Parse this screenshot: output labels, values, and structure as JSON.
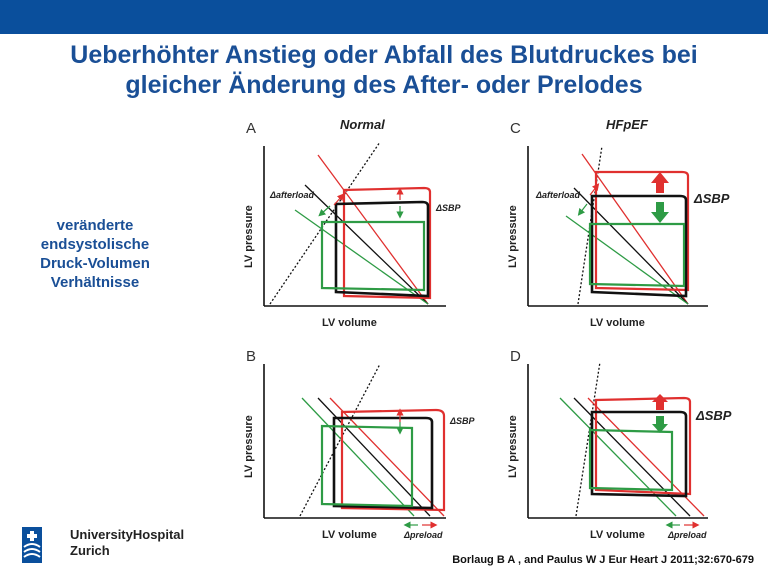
{
  "header": {
    "title_line1": "Ueberhöhter Anstieg oder Abfall des Blutdruckes bei",
    "title_line2": "gleicher Änderung des After- oder Prelodes"
  },
  "sidenote": {
    "lines": [
      "veränderte",
      "endsystolische",
      "Druck-Volumen",
      "Verhältnisse"
    ]
  },
  "panels": [
    {
      "letter": "A",
      "title": "Normal",
      "xlabel": "LV volume",
      "ylabel": "LV pressure",
      "change_label": "Δafterload",
      "result_label": "ΔSBP"
    },
    {
      "letter": "C",
      "title": "HFpEF",
      "xlabel": "LV volume",
      "ylabel": "LV pressure",
      "change_label": "Δafterload",
      "result_label": "ΔSBP"
    },
    {
      "letter": "B",
      "title": "",
      "xlabel": "LV volume",
      "ylabel": "LV pressure",
      "change_label": "Δpreload",
      "result_label": "ΔSBP"
    },
    {
      "letter": "D",
      "title": "",
      "xlabel": "LV volume",
      "ylabel": "LV pressure",
      "change_label": "Δpreload",
      "result_label": "ΔSBP"
    }
  ],
  "colors": {
    "red": "#e0302f",
    "green": "#2e9b45",
    "black": "#111111",
    "brand": "#0a4f9c",
    "title": "#1a4f96"
  },
  "logo": {
    "line1": "UniversityHospital",
    "line2": "Zurich",
    "icon": "university-hospital-logo-icon"
  },
  "citation": "Borlaug B A , and Paulus W J Eur Heart J 2011;32:670-679"
}
